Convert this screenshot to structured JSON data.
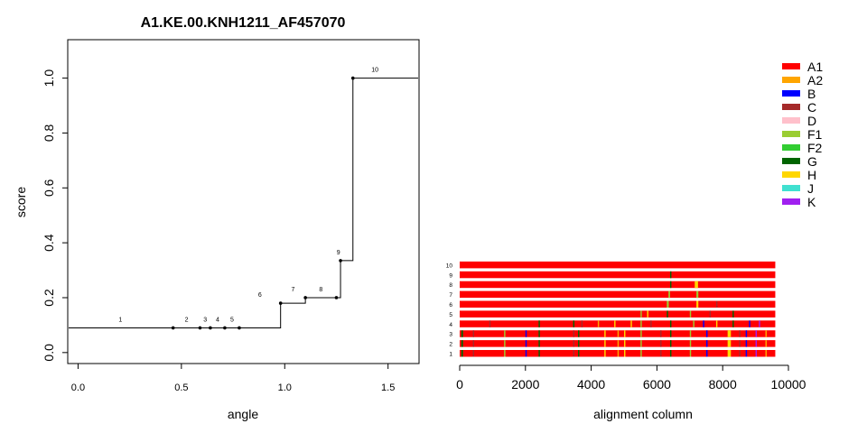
{
  "chart_data": [
    {
      "type": "line",
      "title": "A1.KE.00.KNH1211_AF457070",
      "xlabel": "angle",
      "ylabel": "score",
      "x_ticks": [
        "0.0",
        "0.5",
        "1.0",
        "1.5"
      ],
      "y_ticks": [
        "0.0",
        "0.2",
        "0.4",
        "0.6",
        "0.8",
        "1.0"
      ],
      "xlim": [
        -0.05,
        1.65
      ],
      "ylim": [
        -0.04,
        1.14
      ],
      "series": [
        {
          "step": true,
          "x": [
            0.46,
            0.59,
            0.64,
            0.71,
            0.78,
            0.98,
            1.1,
            1.25,
            1.27,
            1.33
          ],
          "y": [
            0.09,
            0.09,
            0.09,
            0.09,
            0.09,
            0.18,
            0.2,
            0.2,
            0.335,
            1.0
          ],
          "labels": [
            "1",
            "2",
            "3",
            "4",
            "5",
            "6",
            "7",
            "8",
            "9",
            "10"
          ]
        }
      ],
      "grid": false
    },
    {
      "type": "heatmap",
      "xlabel": "alignment column",
      "x_ticks": [
        "0",
        "2000",
        "4000",
        "6000",
        "8000",
        "10000"
      ],
      "xlim": [
        0,
        10000
      ],
      "alignment_length": 9600,
      "rows": [
        "1",
        "2",
        "3",
        "4",
        "5",
        "6",
        "7",
        "8",
        "9",
        "10"
      ],
      "base_subtype": "A1",
      "segments": [
        {
          "row": 1,
          "subtype": "G",
          "start": 50,
          "end": 100
        },
        {
          "row": 1,
          "subtype": "C",
          "start": 400,
          "end": 440
        },
        {
          "row": 1,
          "subtype": "F1",
          "start": 1350,
          "end": 1390
        },
        {
          "row": 1,
          "subtype": "B",
          "start": 2000,
          "end": 2040
        },
        {
          "row": 1,
          "subtype": "G",
          "start": 2400,
          "end": 2440
        },
        {
          "row": 1,
          "subtype": "C",
          "start": 3450,
          "end": 3490
        },
        {
          "row": 1,
          "subtype": "G",
          "start": 3600,
          "end": 3640
        },
        {
          "row": 1,
          "subtype": "H",
          "start": 4400,
          "end": 4440
        },
        {
          "row": 1,
          "subtype": "A2",
          "start": 4800,
          "end": 4840
        },
        {
          "row": 1,
          "subtype": "H",
          "start": 5000,
          "end": 5040
        },
        {
          "row": 1,
          "subtype": "F1",
          "start": 5500,
          "end": 5540
        },
        {
          "row": 1,
          "subtype": "C",
          "start": 6100,
          "end": 6140
        },
        {
          "row": 1,
          "subtype": "G",
          "start": 6400,
          "end": 6440
        },
        {
          "row": 1,
          "subtype": "F1",
          "start": 7000,
          "end": 7040
        },
        {
          "row": 1,
          "subtype": "B",
          "start": 7500,
          "end": 7540
        },
        {
          "row": 1,
          "subtype": "H",
          "start": 8150,
          "end": 8250
        },
        {
          "row": 1,
          "subtype": "C",
          "start": 8500,
          "end": 8540
        },
        {
          "row": 1,
          "subtype": "B",
          "start": 8700,
          "end": 8740
        },
        {
          "row": 1,
          "subtype": "K",
          "start": 9000,
          "end": 9040
        },
        {
          "row": 1,
          "subtype": "A2",
          "start": 9300,
          "end": 9340
        },
        {
          "row": 2,
          "subtype": "G",
          "start": 50,
          "end": 100
        },
        {
          "row": 2,
          "subtype": "C",
          "start": 400,
          "end": 440
        },
        {
          "row": 2,
          "subtype": "F1",
          "start": 1350,
          "end": 1390
        },
        {
          "row": 2,
          "subtype": "B",
          "start": 2000,
          "end": 2040
        },
        {
          "row": 2,
          "subtype": "G",
          "start": 2400,
          "end": 2440
        },
        {
          "row": 2,
          "subtype": "C",
          "start": 3450,
          "end": 3490
        },
        {
          "row": 2,
          "subtype": "G",
          "start": 3600,
          "end": 3640
        },
        {
          "row": 2,
          "subtype": "H",
          "start": 4400,
          "end": 4440
        },
        {
          "row": 2,
          "subtype": "A2",
          "start": 4800,
          "end": 4840
        },
        {
          "row": 2,
          "subtype": "H",
          "start": 5000,
          "end": 5040
        },
        {
          "row": 2,
          "subtype": "F1",
          "start": 5500,
          "end": 5540
        },
        {
          "row": 2,
          "subtype": "C",
          "start": 6100,
          "end": 6140
        },
        {
          "row": 2,
          "subtype": "G",
          "start": 6400,
          "end": 6440
        },
        {
          "row": 2,
          "subtype": "F1",
          "start": 7000,
          "end": 7040
        },
        {
          "row": 2,
          "subtype": "B",
          "start": 7500,
          "end": 7540
        },
        {
          "row": 2,
          "subtype": "H",
          "start": 8150,
          "end": 8250
        },
        {
          "row": 2,
          "subtype": "C",
          "start": 8500,
          "end": 8540
        },
        {
          "row": 2,
          "subtype": "B",
          "start": 8700,
          "end": 8740
        },
        {
          "row": 2,
          "subtype": "K",
          "start": 9000,
          "end": 9040
        },
        {
          "row": 2,
          "subtype": "A2",
          "start": 9300,
          "end": 9340
        },
        {
          "row": 3,
          "subtype": "G",
          "start": 50,
          "end": 100
        },
        {
          "row": 3,
          "subtype": "C",
          "start": 400,
          "end": 440
        },
        {
          "row": 3,
          "subtype": "F1",
          "start": 1350,
          "end": 1390
        },
        {
          "row": 3,
          "subtype": "B",
          "start": 2000,
          "end": 2040
        },
        {
          "row": 3,
          "subtype": "G",
          "start": 2400,
          "end": 2440
        },
        {
          "row": 3,
          "subtype": "C",
          "start": 3450,
          "end": 3490
        },
        {
          "row": 3,
          "subtype": "G",
          "start": 3600,
          "end": 3640
        },
        {
          "row": 3,
          "subtype": "H",
          "start": 4400,
          "end": 4440
        },
        {
          "row": 3,
          "subtype": "A2",
          "start": 4800,
          "end": 4840
        },
        {
          "row": 3,
          "subtype": "H",
          "start": 5000,
          "end": 5040
        },
        {
          "row": 3,
          "subtype": "F1",
          "start": 5500,
          "end": 5540
        },
        {
          "row": 3,
          "subtype": "C",
          "start": 6100,
          "end": 6140
        },
        {
          "row": 3,
          "subtype": "G",
          "start": 6400,
          "end": 6440
        },
        {
          "row": 3,
          "subtype": "F1",
          "start": 7000,
          "end": 7040
        },
        {
          "row": 3,
          "subtype": "B",
          "start": 7500,
          "end": 7540
        },
        {
          "row": 3,
          "subtype": "H",
          "start": 8150,
          "end": 8250
        },
        {
          "row": 3,
          "subtype": "C",
          "start": 8500,
          "end": 8540
        },
        {
          "row": 3,
          "subtype": "B",
          "start": 8700,
          "end": 8740
        },
        {
          "row": 3,
          "subtype": "K",
          "start": 9000,
          "end": 9040
        },
        {
          "row": 3,
          "subtype": "A2",
          "start": 9300,
          "end": 9340
        },
        {
          "row": 4,
          "subtype": "C",
          "start": 900,
          "end": 940
        },
        {
          "row": 4,
          "subtype": "G",
          "start": 2400,
          "end": 2440
        },
        {
          "row": 4,
          "subtype": "G",
          "start": 3450,
          "end": 3490
        },
        {
          "row": 4,
          "subtype": "C",
          "start": 3700,
          "end": 3740
        },
        {
          "row": 4,
          "subtype": "A2",
          "start": 4200,
          "end": 4240
        },
        {
          "row": 4,
          "subtype": "H",
          "start": 4700,
          "end": 4740
        },
        {
          "row": 4,
          "subtype": "H",
          "start": 5200,
          "end": 5240
        },
        {
          "row": 4,
          "subtype": "F1",
          "start": 5500,
          "end": 5540
        },
        {
          "row": 4,
          "subtype": "C",
          "start": 5800,
          "end": 5840
        },
        {
          "row": 4,
          "subtype": "G",
          "start": 6400,
          "end": 6440
        },
        {
          "row": 4,
          "subtype": "F1",
          "start": 7100,
          "end": 7140
        },
        {
          "row": 4,
          "subtype": "B",
          "start": 7400,
          "end": 7440
        },
        {
          "row": 4,
          "subtype": "H",
          "start": 7800,
          "end": 7840
        },
        {
          "row": 4,
          "subtype": "G",
          "start": 8300,
          "end": 8340
        },
        {
          "row": 4,
          "subtype": "B",
          "start": 8800,
          "end": 8840
        },
        {
          "row": 4,
          "subtype": "K",
          "start": 9100,
          "end": 9140
        },
        {
          "row": 5,
          "subtype": "F1",
          "start": 5500,
          "end": 5540
        },
        {
          "row": 5,
          "subtype": "H",
          "start": 5700,
          "end": 5740
        },
        {
          "row": 5,
          "subtype": "G",
          "start": 6300,
          "end": 6340
        },
        {
          "row": 5,
          "subtype": "F1",
          "start": 7000,
          "end": 7040
        },
        {
          "row": 5,
          "subtype": "C",
          "start": 7600,
          "end": 7640
        },
        {
          "row": 5,
          "subtype": "G",
          "start": 8300,
          "end": 8340
        },
        {
          "row": 6,
          "subtype": "F1",
          "start": 6300,
          "end": 6360
        },
        {
          "row": 6,
          "subtype": "H",
          "start": 7200,
          "end": 7260
        },
        {
          "row": 6,
          "subtype": "C",
          "start": 7800,
          "end": 7840
        },
        {
          "row": 7,
          "subtype": "F1",
          "start": 6350,
          "end": 6400
        },
        {
          "row": 7,
          "subtype": "F1",
          "start": 7200,
          "end": 7260
        },
        {
          "row": 8,
          "subtype": "G",
          "start": 6400,
          "end": 6440
        },
        {
          "row": 8,
          "subtype": "H",
          "start": 7150,
          "end": 7250
        },
        {
          "row": 9,
          "subtype": "G",
          "start": 6400,
          "end": 6440
        }
      ],
      "legend": {
        "placement": "top-right",
        "entries": [
          {
            "name": "A1",
            "color": "#ff0000"
          },
          {
            "name": "A2",
            "color": "#ffa500"
          },
          {
            "name": "B",
            "color": "#0000ff"
          },
          {
            "name": "C",
            "color": "#a52a2a"
          },
          {
            "name": "D",
            "color": "#ffc0cb"
          },
          {
            "name": "F1",
            "color": "#9acd32"
          },
          {
            "name": "F2",
            "color": "#32cd32"
          },
          {
            "name": "G",
            "color": "#006400"
          },
          {
            "name": "H",
            "color": "#ffd700"
          },
          {
            "name": "J",
            "color": "#40e0d0"
          },
          {
            "name": "K",
            "color": "#a020f0"
          }
        ]
      }
    }
  ]
}
